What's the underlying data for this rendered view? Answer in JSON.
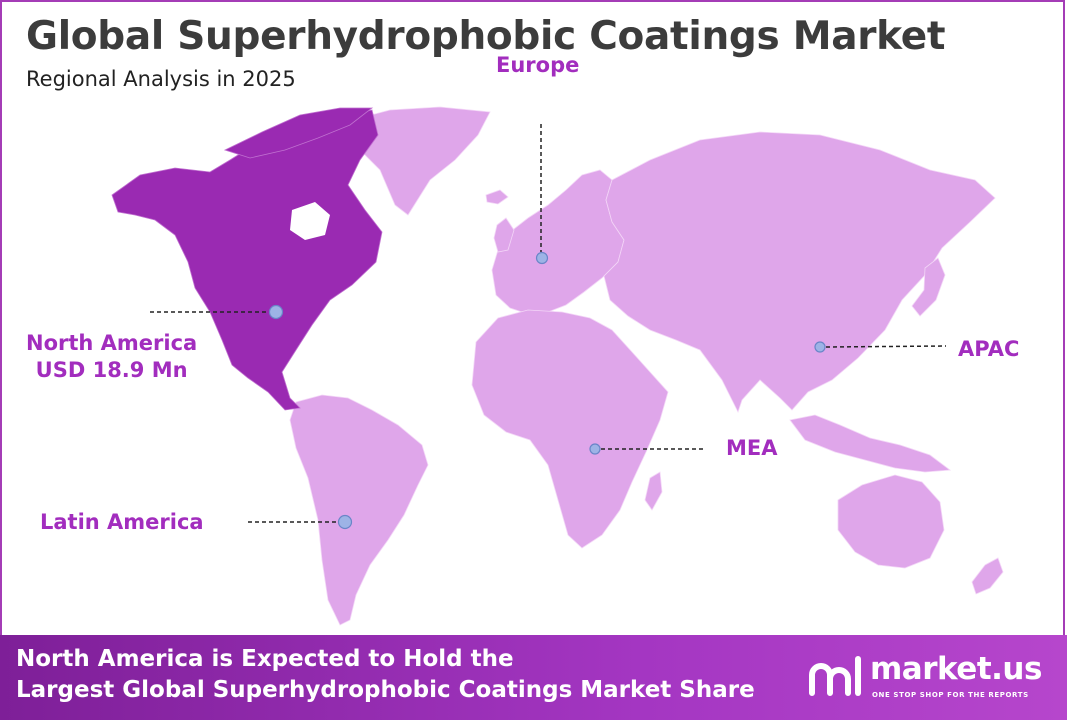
{
  "header": {
    "title": "Global Superhydrophobic Coatings Market",
    "subtitle": "Regional Analysis in 2025"
  },
  "regions": {
    "north_america": {
      "name": "North America",
      "value": "USD 18.9 Mn",
      "highlighted": true
    },
    "europe": {
      "name": "Europe"
    },
    "apac": {
      "name": "APAC"
    },
    "mea": {
      "name": "MEA"
    },
    "latin_america": {
      "name": "Latin America"
    }
  },
  "footer": {
    "line1": "North America is Expected to Hold the",
    "line2": "Largest Global Superhydrophobic Coatings Market Share"
  },
  "brand": {
    "name": "market.us",
    "tagline": "ONE STOP SHOP FOR THE REPORTS"
  },
  "colors": {
    "highlight_region": "#9a2ab2",
    "other_regions": "#dfa6ea",
    "label": "#a22dbe",
    "marker": "#9db3e6",
    "footer": "#8f2aad"
  }
}
